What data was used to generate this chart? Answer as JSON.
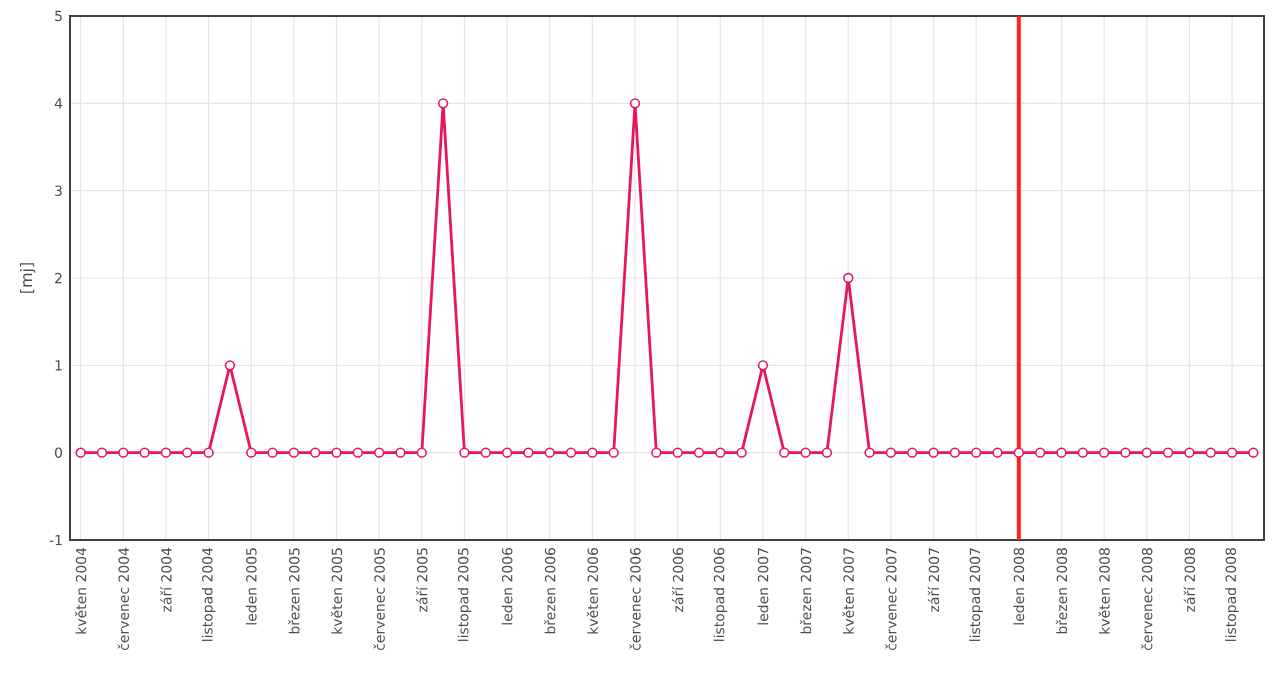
{
  "chart_data": {
    "type": "line",
    "ylabel": "[mj]",
    "categories": [
      "květen 2004",
      null,
      "červenec 2004",
      null,
      "září 2004",
      null,
      "listopad 2004",
      null,
      "leden 2005",
      null,
      "březen 2005",
      null,
      "květen 2005",
      null,
      "červenec 2005",
      null,
      "září 2005",
      null,
      "listopad 2005",
      null,
      "leden 2006",
      null,
      "březen 2006",
      null,
      "květen 2006",
      null,
      "červenec 2006",
      null,
      "září 2006",
      null,
      "listopad 2006",
      null,
      "leden 2007",
      null,
      "březen 2007",
      null,
      "květen 2007",
      null,
      "červenec 2007",
      null,
      "září 2007",
      null,
      "listopad 2007",
      null,
      "leden 2008",
      null,
      "březen 2008",
      null,
      "květen 2008",
      null,
      "červenec 2008",
      null,
      "září 2008",
      null,
      "listopad 2008",
      null
    ],
    "series": [
      {
        "color": "#e8175d",
        "values": [
          0,
          0,
          0,
          0,
          0,
          0,
          0,
          1,
          0,
          0,
          0,
          0,
          0,
          0,
          0,
          0,
          0,
          4,
          0,
          0,
          0,
          0,
          0,
          0,
          0,
          0,
          4,
          0,
          0,
          0,
          0,
          0,
          1,
          0,
          0,
          0,
          2,
          0,
          0,
          0,
          0,
          0,
          0,
          0,
          0,
          0,
          0,
          0,
          0,
          0,
          0,
          0,
          0,
          0,
          0,
          0
        ]
      }
    ],
    "ylim": [
      -1,
      5
    ],
    "yticks": [
      -1,
      0,
      1,
      2,
      3,
      4,
      5
    ],
    "grid": true,
    "marker": "circle",
    "line_style": "solid",
    "ref_lines": [
      {
        "axis": "x",
        "value": "leden 2008",
        "color": "#ff2020"
      }
    ]
  }
}
